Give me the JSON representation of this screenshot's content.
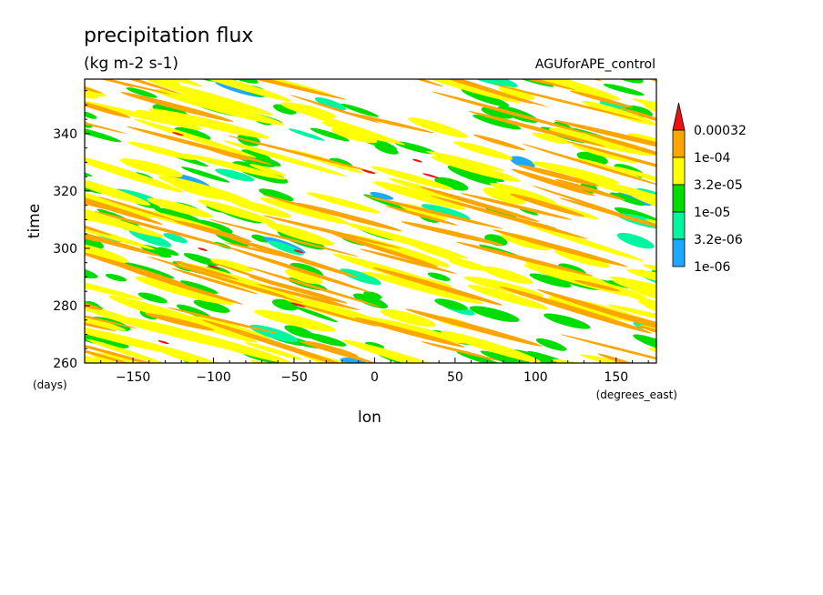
{
  "chart_data": {
    "type": "heatmap",
    "title": "precipitation flux",
    "subtitle": "(kg m-2 s-1)",
    "dataset": "AGUforAPE_control",
    "xlabel": "lon",
    "xunits": "(degrees_east)",
    "ylabel": "time",
    "yunits": "(days)",
    "xlim": [
      -180,
      175
    ],
    "ylim": [
      260,
      359
    ],
    "xticks": [
      -150,
      -100,
      -50,
      0,
      50,
      100,
      150
    ],
    "yticks": [
      260,
      280,
      300,
      320,
      340
    ],
    "colorbar": {
      "labels": [
        "0.00032",
        "1e-04",
        "3.2e-05",
        "1e-05",
        "3.2e-06",
        "1e-06"
      ],
      "levels": [
        1e-06,
        3.2e-06,
        1e-05,
        3.2e-05,
        0.0001,
        0.00032
      ],
      "colors": [
        "#1fa8ff",
        "#00f5a0",
        "#00dd00",
        "#ffff00",
        "#ffa500",
        "#ee1111"
      ],
      "extend": "max"
    },
    "background": "#ffffff"
  }
}
